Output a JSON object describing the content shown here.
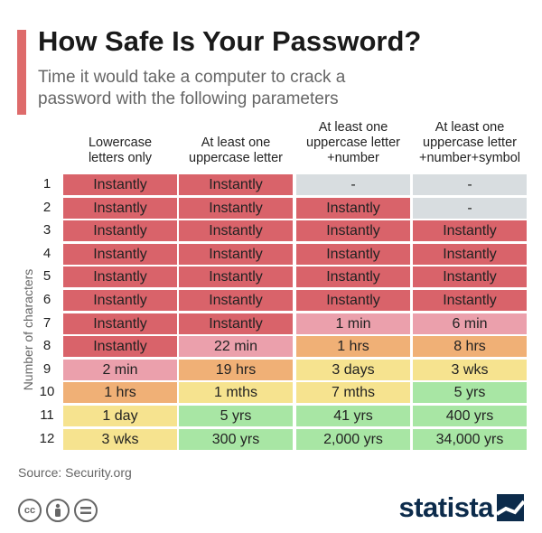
{
  "title": "How Safe Is Your Password?",
  "subtitle": "Time it would take a computer to crack a password with the following parameters",
  "source": "Source: Security.org",
  "brand": "statista",
  "license_icons": [
    "cc-icon",
    "attribution-icon",
    "no-derivatives-icon"
  ],
  "colors": {
    "accent": "#de6b6b",
    "instantly": "#d9636a",
    "minutes": "#eba0ac",
    "hours": "#f0b076",
    "days": "#f6e38f",
    "years": "#a8e6a4",
    "na": "#d8dde0",
    "brand": "#0c2b4b"
  },
  "chart_data": {
    "type": "table",
    "title": "How Safe Is Your Password?",
    "subtitle": "Time it would take a computer to crack a password with the following parameters",
    "ylabel": "Number of characters",
    "columns": [
      [
        "Lowercase",
        "letters only"
      ],
      [
        "At least one",
        "uppercase letter"
      ],
      [
        "At least one",
        "uppercase letter",
        "+number"
      ],
      [
        "At least one",
        "uppercase letter",
        "+number+symbol"
      ]
    ],
    "rows": [
      {
        "label": "1",
        "cells": [
          {
            "text": "Instantly",
            "level": "instantly"
          },
          {
            "text": "Instantly",
            "level": "instantly"
          },
          {
            "text": "-",
            "level": "na"
          },
          {
            "text": "-",
            "level": "na"
          }
        ]
      },
      {
        "label": "2",
        "cells": [
          {
            "text": "Instantly",
            "level": "instantly"
          },
          {
            "text": "Instantly",
            "level": "instantly"
          },
          {
            "text": "Instantly",
            "level": "instantly"
          },
          {
            "text": "-",
            "level": "na"
          }
        ]
      },
      {
        "label": "3",
        "cells": [
          {
            "text": "Instantly",
            "level": "instantly"
          },
          {
            "text": "Instantly",
            "level": "instantly"
          },
          {
            "text": "Instantly",
            "level": "instantly"
          },
          {
            "text": "Instantly",
            "level": "instantly"
          }
        ]
      },
      {
        "label": "4",
        "cells": [
          {
            "text": "Instantly",
            "level": "instantly"
          },
          {
            "text": "Instantly",
            "level": "instantly"
          },
          {
            "text": "Instantly",
            "level": "instantly"
          },
          {
            "text": "Instantly",
            "level": "instantly"
          }
        ]
      },
      {
        "label": "5",
        "cells": [
          {
            "text": "Instantly",
            "level": "instantly"
          },
          {
            "text": "Instantly",
            "level": "instantly"
          },
          {
            "text": "Instantly",
            "level": "instantly"
          },
          {
            "text": "Instantly",
            "level": "instantly"
          }
        ]
      },
      {
        "label": "6",
        "cells": [
          {
            "text": "Instantly",
            "level": "instantly"
          },
          {
            "text": "Instantly",
            "level": "instantly"
          },
          {
            "text": "Instantly",
            "level": "instantly"
          },
          {
            "text": "Instantly",
            "level": "instantly"
          }
        ]
      },
      {
        "label": "7",
        "cells": [
          {
            "text": "Instantly",
            "level": "instantly"
          },
          {
            "text": "Instantly",
            "level": "instantly"
          },
          {
            "text": "1 min",
            "level": "minutes"
          },
          {
            "text": "6 min",
            "level": "minutes"
          }
        ]
      },
      {
        "label": "8",
        "cells": [
          {
            "text": "Instantly",
            "level": "instantly"
          },
          {
            "text": "22 min",
            "level": "minutes"
          },
          {
            "text": "1 hrs",
            "level": "hours"
          },
          {
            "text": "8 hrs",
            "level": "hours"
          }
        ]
      },
      {
        "label": "9",
        "cells": [
          {
            "text": "2 min",
            "level": "minutes"
          },
          {
            "text": "19 hrs",
            "level": "hours"
          },
          {
            "text": "3 days",
            "level": "days"
          },
          {
            "text": "3 wks",
            "level": "days"
          }
        ]
      },
      {
        "label": "10",
        "cells": [
          {
            "text": "1 hrs",
            "level": "hours"
          },
          {
            "text": "1 mths",
            "level": "days"
          },
          {
            "text": "7 mths",
            "level": "days"
          },
          {
            "text": "5 yrs",
            "level": "years"
          }
        ]
      },
      {
        "label": "11",
        "cells": [
          {
            "text": "1 day",
            "level": "days"
          },
          {
            "text": "5 yrs",
            "level": "years"
          },
          {
            "text": "41 yrs",
            "level": "years"
          },
          {
            "text": "400 yrs",
            "level": "years"
          }
        ]
      },
      {
        "label": "12",
        "cells": [
          {
            "text": "3 wks",
            "level": "days"
          },
          {
            "text": "300 yrs",
            "level": "years"
          },
          {
            "text": "2,000 yrs",
            "level": "years"
          },
          {
            "text": "34,000 yrs",
            "level": "years"
          }
        ]
      }
    ]
  }
}
